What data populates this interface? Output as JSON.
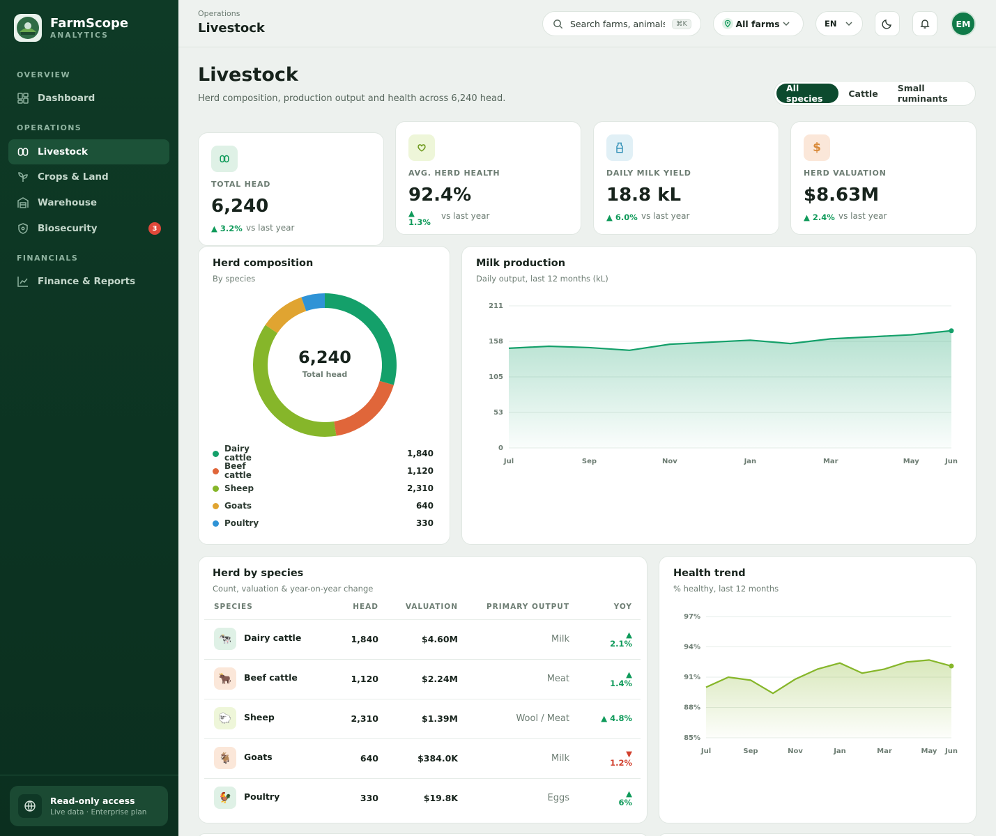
{
  "brand": {
    "name": "FarmScope",
    "sub": "ANALYTICS"
  },
  "nav": {
    "overview_label": "OVERVIEW",
    "operations_label": "OPERATIONS",
    "financials_label": "FINANCIALS",
    "items": [
      {
        "label": "Dashboard",
        "icon": "grid-icon"
      },
      {
        "label": "Livestock",
        "icon": "livestock-icon",
        "active": true
      },
      {
        "label": "Crops & Land",
        "icon": "sprout-icon"
      },
      {
        "label": "Warehouse",
        "icon": "warehouse-icon"
      },
      {
        "label": "Biosecurity",
        "icon": "shield-icon",
        "badge": "3"
      },
      {
        "label": "Finance & Reports",
        "icon": "chart-line-icon"
      }
    ]
  },
  "access": {
    "title": "Read-only access",
    "sub": "Live data · Enterprise plan"
  },
  "topbar": {
    "crumb": "Operations",
    "title": "Livestock",
    "search_placeholder": "Search farms, animals, reports",
    "shortcut": "⌘K",
    "farm": "All farms",
    "lang": "EN",
    "avatar": "EM"
  },
  "header": {
    "title": "Livestock",
    "subtitle": "Herd composition, production output and health across 6,240 head.",
    "filters": [
      "All species",
      "Cattle",
      "Small ruminants"
    ],
    "active_filter": "All species"
  },
  "kpis": [
    {
      "label": "TOTAL HEAD",
      "value": "6,240",
      "delta": "▲ 3.2%",
      "vs": "vs last year",
      "icon": "livestock-icon"
    },
    {
      "label": "AVG. HERD HEALTH",
      "value": "92.4%",
      "delta": "▲ 1.3%",
      "vs": "vs last year",
      "icon": "heart-icon"
    },
    {
      "label": "DAILY MILK YIELD",
      "value": "18.8 kL",
      "delta": "▲ 6.0%",
      "vs": "vs last year",
      "icon": "milk-bottle-icon"
    },
    {
      "label": "HERD VALUATION",
      "value": "$8.63M",
      "delta": "▲ 2.4%",
      "vs": "vs last year",
      "icon": "dollar-icon"
    }
  ],
  "composition": {
    "title": "Herd composition",
    "sub": "By species",
    "center_value": "6,240",
    "center_label": "Total head"
  },
  "milk": {
    "title": "Milk production",
    "sub": "Daily output, last 12 months (kL)"
  },
  "health": {
    "title": "Health trend",
    "sub": "% healthy, last 12 months"
  },
  "species_table": {
    "title": "Herd by species",
    "sub": "Count, valuation & year-on-year change",
    "columns": [
      "SPECIES",
      "HEAD",
      "VALUATION",
      "PRIMARY OUTPUT",
      "YOY"
    ],
    "rows": [
      {
        "name": "Dairy cattle",
        "head": "1,840",
        "valuation": "$4.60M",
        "output": "Milk",
        "yoy": "▲ 2.1%",
        "dir": "up",
        "icon": "🐄"
      },
      {
        "name": "Beef cattle",
        "head": "1,120",
        "valuation": "$2.24M",
        "output": "Meat",
        "yoy": "▲ 1.4%",
        "dir": "up",
        "icon": "🐂"
      },
      {
        "name": "Sheep",
        "head": "2,310",
        "valuation": "$1.39M",
        "output": "Wool / Meat",
        "yoy": "▲ 4.8%",
        "dir": "up",
        "icon": "🐑"
      },
      {
        "name": "Goats",
        "head": "640",
        "valuation": "$384.0K",
        "output": "Milk",
        "yoy": "▼ 1.2%",
        "dir": "down",
        "icon": "🐐"
      },
      {
        "name": "Poultry",
        "head": "330",
        "valuation": "$19.8K",
        "output": "Eggs",
        "yoy": "▲ 6%",
        "dir": "up",
        "icon": "🐓"
      }
    ]
  },
  "chart_data": [
    {
      "type": "pie",
      "title": "Herd composition",
      "categories": [
        "Dairy cattle",
        "Beef cattle",
        "Sheep",
        "Goats",
        "Poultry"
      ],
      "values": [
        1840,
        1120,
        2310,
        640,
        330
      ],
      "labels": [
        "1,840",
        "1,120",
        "2,310",
        "640",
        "330"
      ],
      "colors": [
        "#14a06a",
        "#e0663a",
        "#86b62a",
        "#e0a431",
        "#2f93d6"
      ]
    },
    {
      "type": "area",
      "title": "Milk production",
      "x": [
        "Jul",
        "Aug",
        "Sep",
        "Oct",
        "Nov",
        "Dec",
        "Jan",
        "Feb",
        "Mar",
        "Apr",
        "May",
        "Jun"
      ],
      "xticks": [
        "Jul",
        "Sep",
        "Nov",
        "Jan",
        "Mar",
        "May",
        "Jun"
      ],
      "values": [
        148,
        151,
        149,
        145,
        154,
        157,
        160,
        155,
        162,
        165,
        168,
        174
      ],
      "yticks": [
        0,
        53,
        105,
        158,
        211
      ],
      "ylim": [
        0,
        211
      ],
      "color": "#14a06a"
    },
    {
      "type": "area",
      "title": "Health trend",
      "x": [
        "Jul",
        "Aug",
        "Sep",
        "Oct",
        "Nov",
        "Dec",
        "Jan",
        "Feb",
        "Mar",
        "Apr",
        "May",
        "Jun"
      ],
      "xticks": [
        "Jul",
        "Sep",
        "Nov",
        "Jan",
        "Mar",
        "May",
        "Jun"
      ],
      "values": [
        90.0,
        91.0,
        90.7,
        89.4,
        90.8,
        91.8,
        92.4,
        91.4,
        91.8,
        92.5,
        92.7,
        92.1
      ],
      "yticks": [
        "85%",
        "88%",
        "91%",
        "94%",
        "97%"
      ],
      "ylim": [
        85,
        97
      ],
      "color": "#86b62a"
    }
  ]
}
